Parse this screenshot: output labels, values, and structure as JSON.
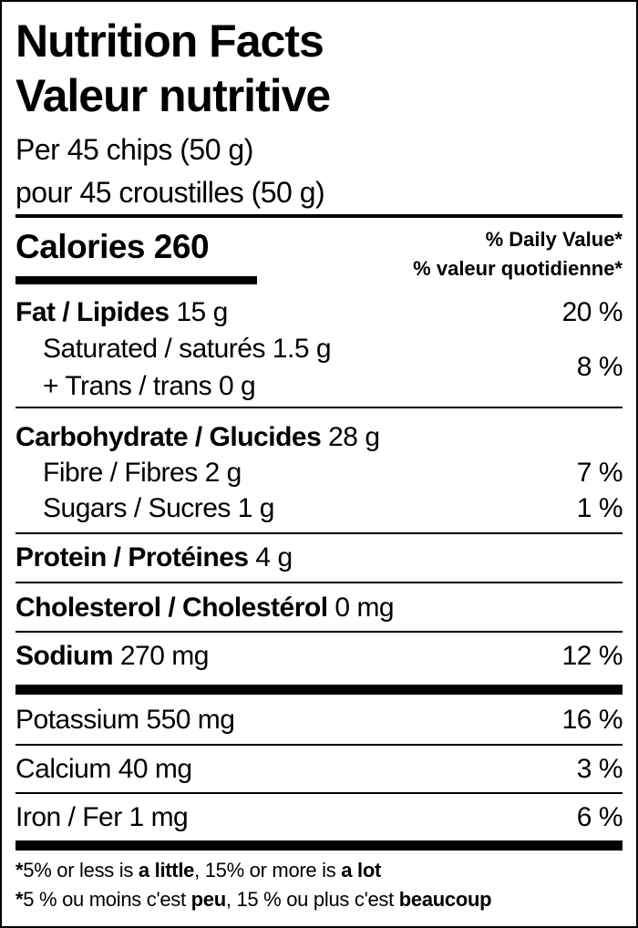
{
  "title_en": "Nutrition Facts",
  "title_fr": "Valeur nutritive",
  "serving_en": "Per 45 chips (50 g)",
  "serving_fr": "pour 45 croustilles (50 g)",
  "calories": {
    "label": "Calories",
    "value": "260"
  },
  "dv_header": {
    "en": "% Daily Value*",
    "fr": "% valeur quotidienne*"
  },
  "nutrients": [
    {
      "label": "Fat / Lipides",
      "amount": "15 g",
      "dv": "20 %"
    },
    {
      "label": "Saturated / saturés",
      "amount": "1.5 g"
    },
    {
      "label": "+ Trans / trans",
      "amount": "0 g",
      "dv": "8 %"
    },
    {
      "label": "Carbohydrate / Glucides",
      "amount": "28 g"
    },
    {
      "label": "Fibre / Fibres",
      "amount": "2 g",
      "dv": "7 %"
    },
    {
      "label": "Sugars / Sucres",
      "amount": "1 g",
      "dv": "1 %"
    },
    {
      "label": "Protein / Protéines",
      "amount": "4 g"
    },
    {
      "label": "Cholesterol / Cholestérol",
      "amount": "0 mg"
    },
    {
      "label": "Sodium",
      "amount": "270 mg",
      "dv": "12 %"
    },
    {
      "label": "Potassium",
      "amount": "550 mg",
      "dv": "16 %"
    },
    {
      "label": "Calcium",
      "amount": "40 mg",
      "dv": "3 %"
    },
    {
      "label": "Iron / Fer",
      "amount": "1 mg",
      "dv": "6 %"
    }
  ],
  "footnote_en": {
    "star": "*",
    "a": "5% or less is ",
    "b": "a little",
    "c": ", 15% or more is ",
    "d": "a lot"
  },
  "footnote_fr": {
    "star": "*",
    "a": "5 % ou moins c'est ",
    "b": "peu",
    "c": ", 15 % ou plus c'est ",
    "d": "beaucoup"
  }
}
